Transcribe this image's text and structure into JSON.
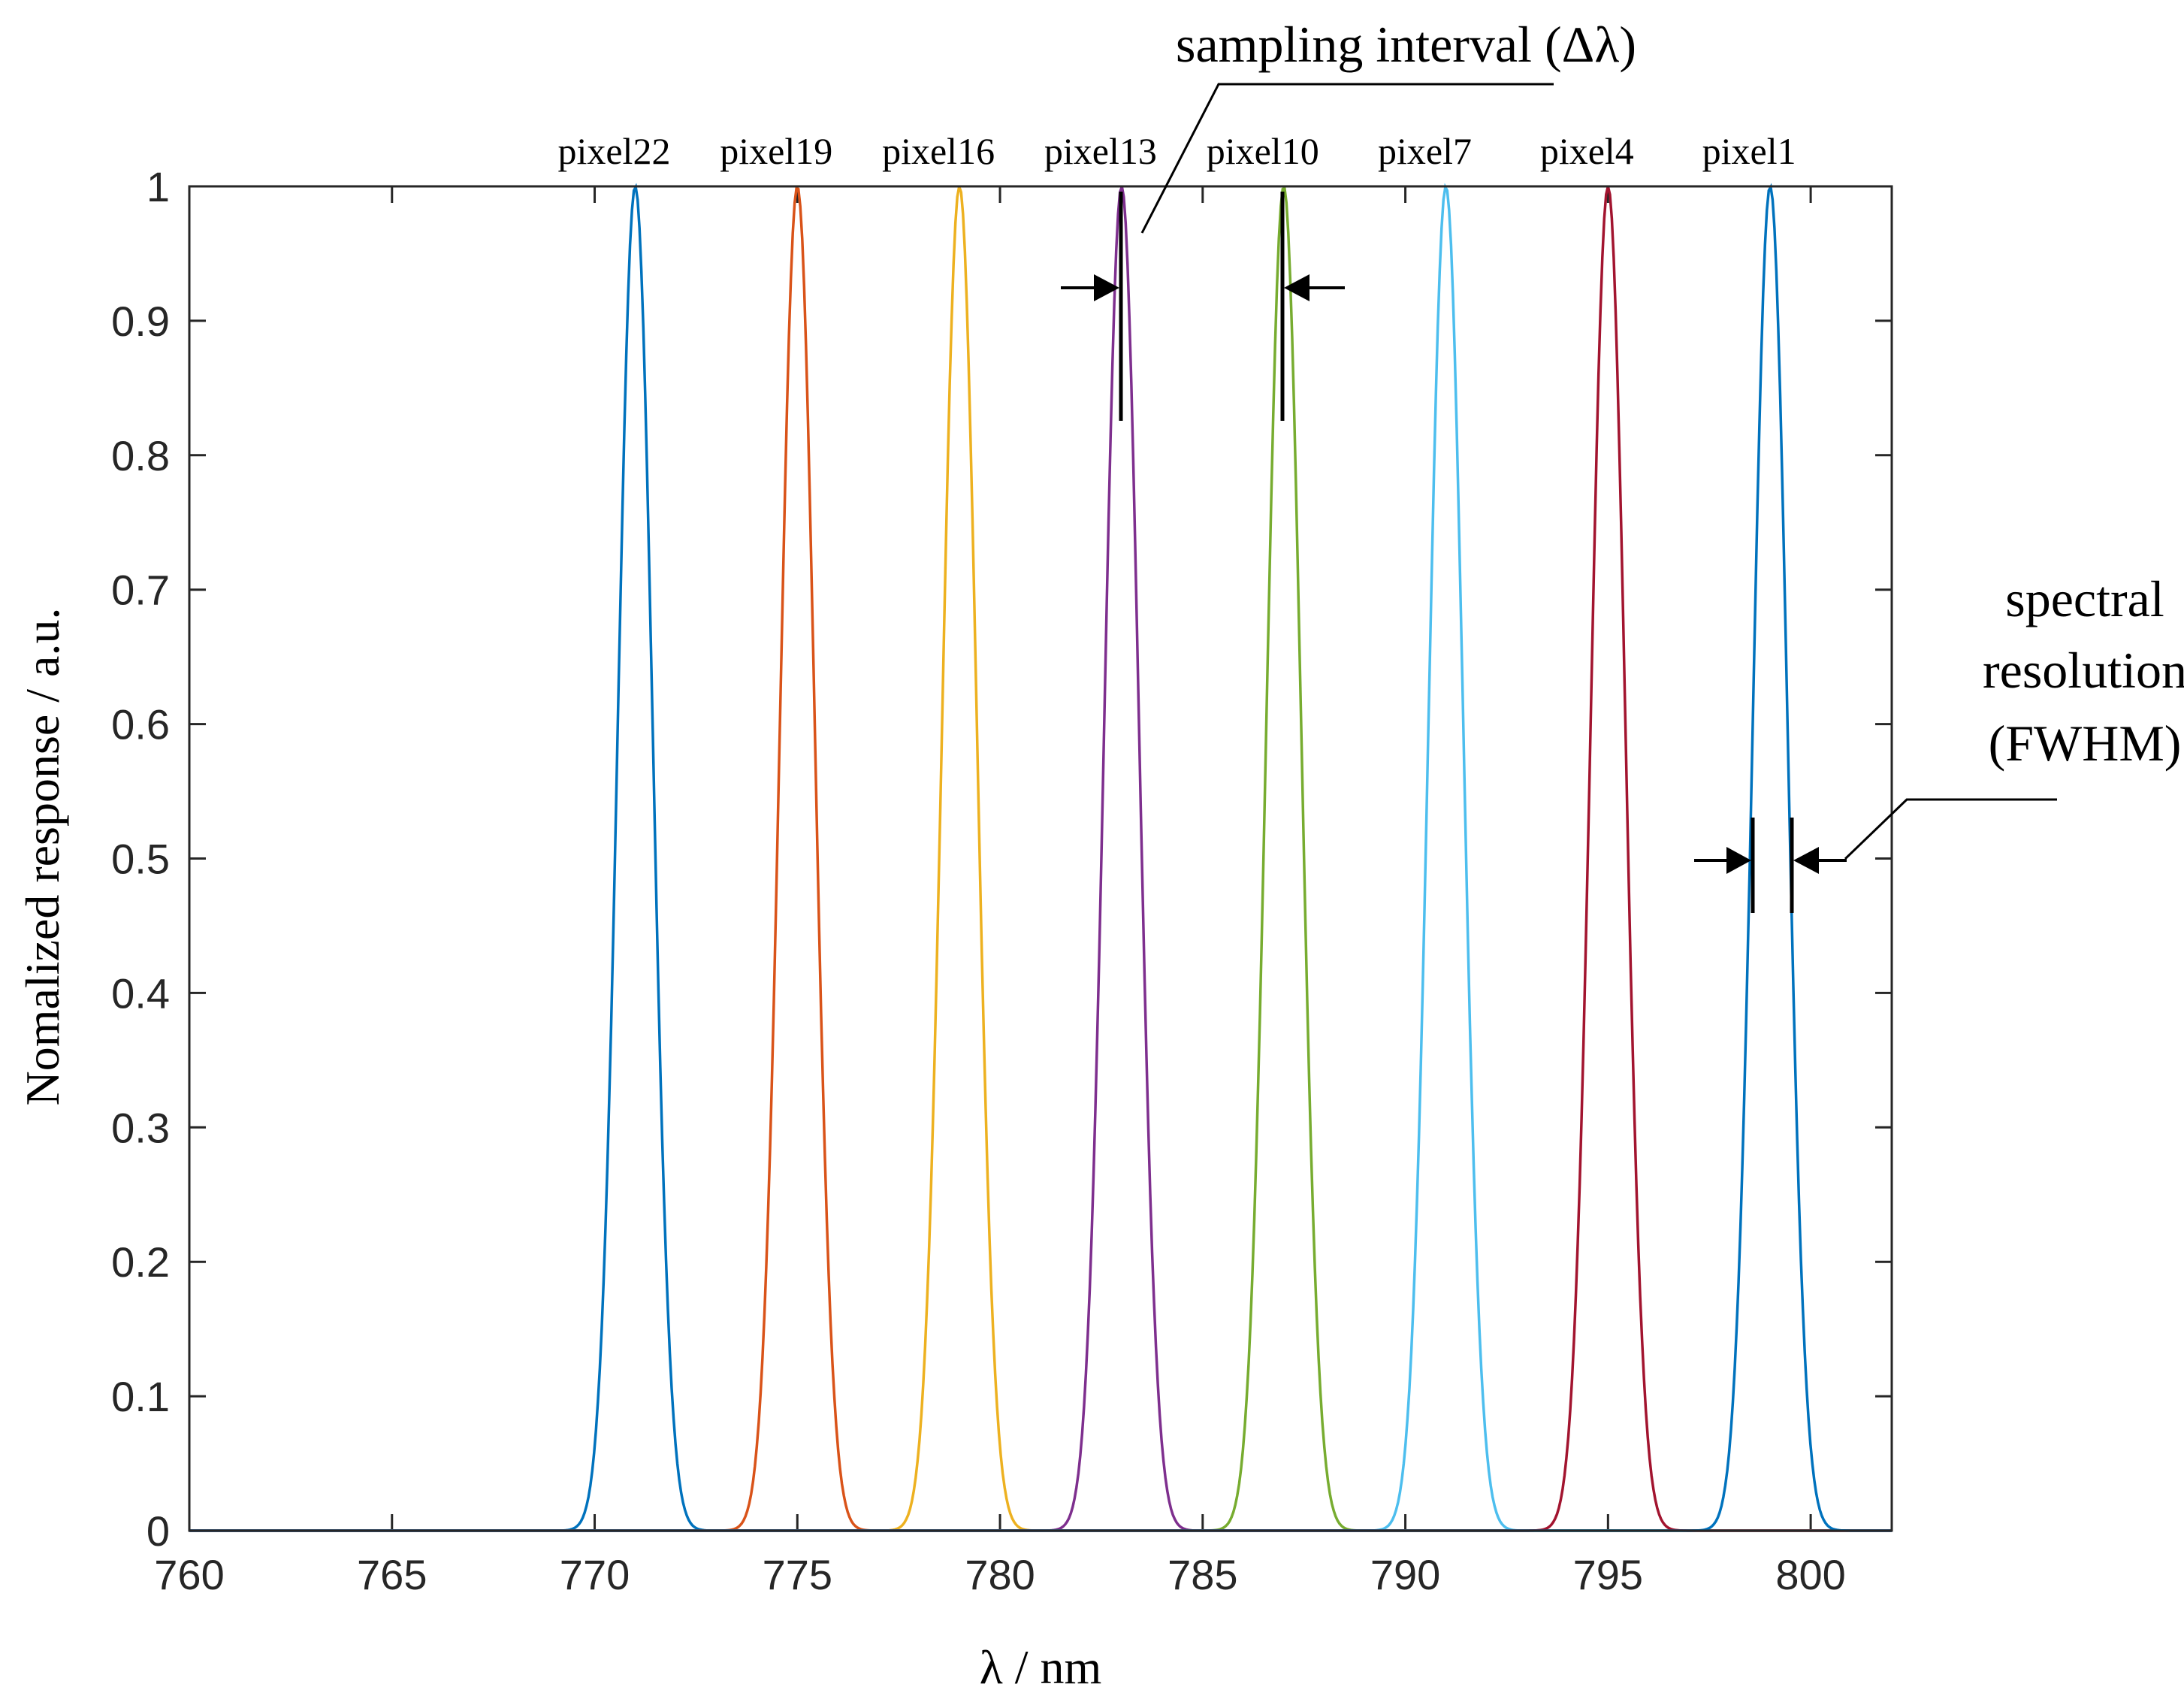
{
  "chart_data": {
    "type": "line",
    "xlabel": "λ / nm",
    "ylabel": "Nomalized response / a.u.",
    "xlim": [
      760,
      802
    ],
    "ylim": [
      0,
      1
    ],
    "x_ticks": [
      760,
      765,
      770,
      775,
      780,
      785,
      790,
      795,
      800
    ],
    "y_ticks": [
      0,
      0.1,
      0.2,
      0.3,
      0.4,
      0.5,
      0.6,
      0.7,
      0.8,
      0.9,
      1
    ],
    "y_tick_labels": [
      "0",
      "0.1",
      "0.2",
      "0.3",
      "0.4",
      "0.5",
      "0.6",
      "0.7",
      "0.8",
      "0.9",
      "1"
    ],
    "fwhm_nm": 1.0,
    "series": [
      {
        "name": "pixel22",
        "center": 771,
        "color": "#0072BD"
      },
      {
        "name": "pixel19",
        "center": 775,
        "color": "#D95319"
      },
      {
        "name": "pixel16",
        "center": 779,
        "color": "#EDB120"
      },
      {
        "name": "pixel13",
        "center": 783,
        "color": "#7E2F8E"
      },
      {
        "name": "pixel10",
        "center": 787,
        "color": "#77AC30"
      },
      {
        "name": "pixel7",
        "center": 791,
        "color": "#4DBEEE"
      },
      {
        "name": "pixel4",
        "center": 795,
        "color": "#A2142F"
      },
      {
        "name": "pixel1",
        "center": 799,
        "color": "#0072BD"
      }
    ],
    "annotations": {
      "sampling_interval": "sampling interval (Δλ)",
      "spectral_resolution": [
        "spectral",
        "resolution",
        "(FWHM)"
      ]
    }
  }
}
